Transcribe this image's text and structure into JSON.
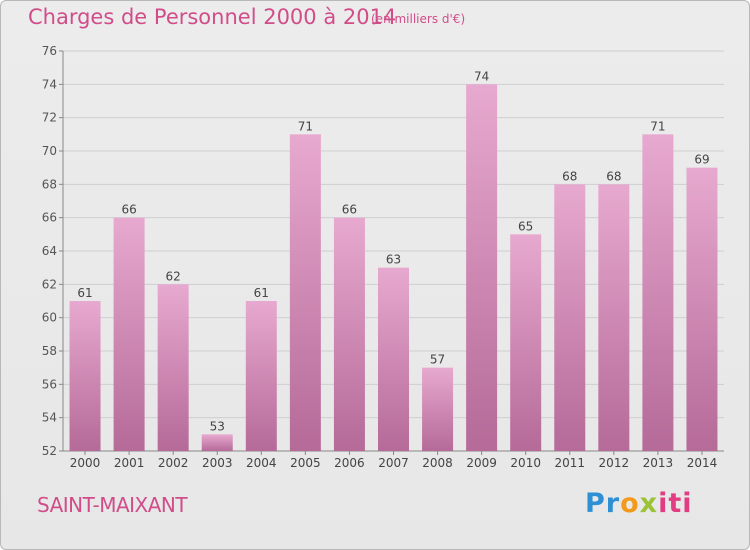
{
  "header": {
    "title": "Charges de Personnel 2000 à 2014",
    "subtitle": "(en milliers d'€)"
  },
  "footer": {
    "place": "SAINT-MAIXANT",
    "brand": "Proxiti"
  },
  "colors": {
    "bar_top": "#e7a9cf",
    "bar_bottom": "#b56a98",
    "title": "#d14d8a",
    "grid": "#cfcfcf"
  },
  "chart_data": {
    "type": "bar",
    "categories": [
      "2000",
      "2001",
      "2002",
      "2003",
      "2004",
      "2005",
      "2006",
      "2007",
      "2008",
      "2009",
      "2010",
      "2011",
      "2012",
      "2013",
      "2014"
    ],
    "values": [
      61,
      66,
      62,
      53,
      61,
      71,
      66,
      63,
      57,
      74,
      65,
      68,
      68,
      71,
      69
    ],
    "title": "Charges de Personnel 2000 à 2014",
    "xlabel": "",
    "ylabel": "",
    "ylim": [
      52,
      76
    ],
    "yticks": [
      52,
      54,
      56,
      58,
      60,
      62,
      64,
      66,
      68,
      70,
      72,
      74,
      76
    ],
    "grid": true
  }
}
